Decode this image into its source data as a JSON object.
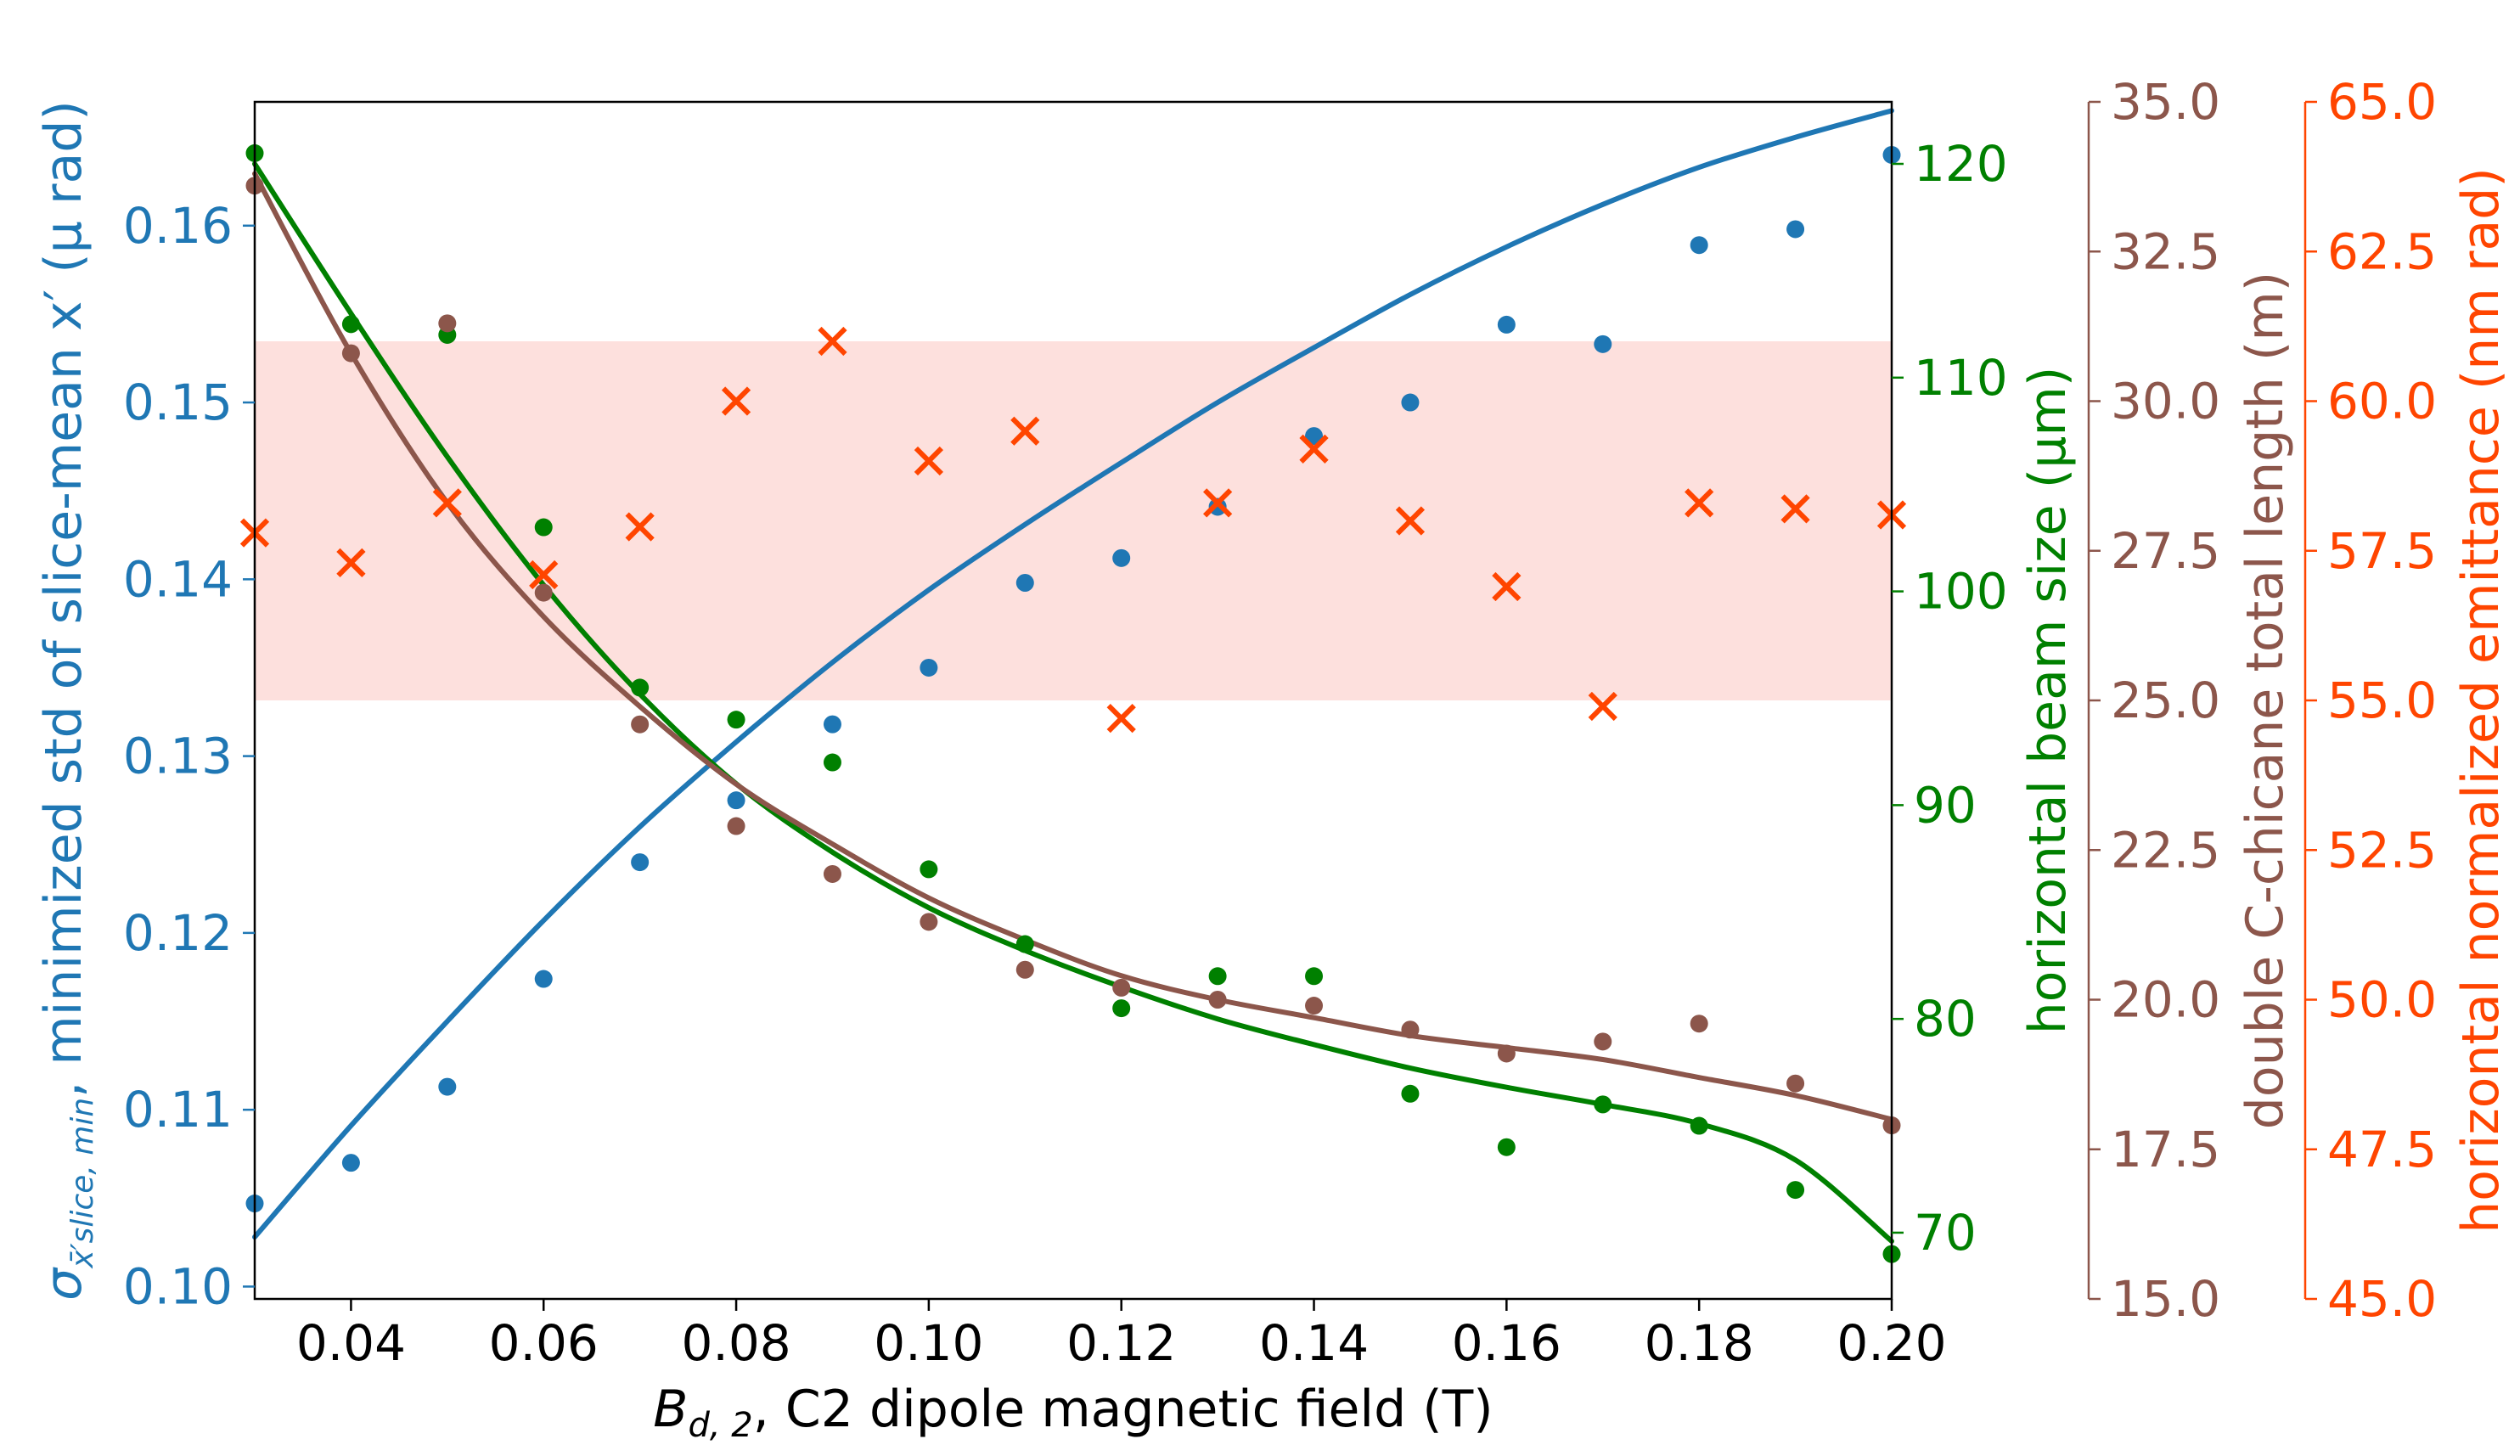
{
  "chart_data": {
    "type": "scatter",
    "x": [
      0.03,
      0.04,
      0.05,
      0.06,
      0.07,
      0.08,
      0.09,
      0.1,
      0.11,
      0.12,
      0.13,
      0.14,
      0.15,
      0.16,
      0.17,
      0.18,
      0.19,
      0.2
    ],
    "x_axis": {
      "label_symbol": "B",
      "label_subscript": "d, 2",
      "label_text": ", C2 dipole magnetic field (T)",
      "lim": [
        0.03,
        0.2
      ],
      "ticks": [
        "0.04",
        "0.06",
        "0.08",
        "0.10",
        "0.12",
        "0.14",
        "0.16",
        "0.18",
        "0.20"
      ]
    },
    "band": {
      "axis": "emittance",
      "range": [
        55.0,
        61.0
      ],
      "color": "#fde0dd"
    },
    "axes": [
      {
        "id": "slice",
        "color": "#1f77b4",
        "lim": [
          0.0993,
          0.167
        ],
        "ticks": [
          "0.10",
          "0.11",
          "0.12",
          "0.13",
          "0.14",
          "0.15",
          "0.16"
        ],
        "label_symbol": "σ",
        "label_subscript": "x̄′slice, min",
        "label_text": ", minimized std of slice-mean x′ (μ rad)"
      },
      {
        "id": "beam",
        "color": "#008000",
        "lim": [
          66.9,
          122.9
        ],
        "ticks": [
          "70",
          "80",
          "90",
          "100",
          "110",
          "120"
        ],
        "label_text": "horizontal beam size (μm)"
      },
      {
        "id": "length",
        "color": "#8c564b",
        "lim": [
          15.0,
          35.0
        ],
        "ticks": [
          "15.0",
          "17.5",
          "20.0",
          "22.5",
          "25.0",
          "27.5",
          "30.0",
          "32.5",
          "35.0"
        ],
        "label_text": "double C-chicane total length (m)"
      },
      {
        "id": "emittance",
        "color": "#ff4500",
        "lim": [
          45.0,
          65.0
        ],
        "ticks": [
          "45.0",
          "47.5",
          "50.0",
          "52.5",
          "55.0",
          "57.5",
          "60.0",
          "62.5",
          "65.0"
        ],
        "label_text": "horizontal normalized emittance (nm rad)"
      }
    ],
    "series": [
      {
        "name": "minimized std of slice-mean x′",
        "axis": "slice",
        "marker": "circle",
        "color": "#1f77b4",
        "values": [
          0.1047,
          0.107,
          0.1113,
          0.1174,
          0.124,
          0.1275,
          0.1318,
          0.135,
          0.1398,
          0.1412,
          0.1441,
          0.1481,
          0.15,
          0.1544,
          0.1533,
          0.1589,
          0.1598,
          0.164
        ],
        "fit": [
          0.1028,
          0.1091,
          0.115,
          0.1207,
          0.126,
          0.1308,
          0.1353,
          0.1394,
          0.1431,
          0.1466,
          0.15,
          0.1531,
          0.1561,
          0.1588,
          0.1612,
          0.1633,
          0.165,
          0.1665
        ]
      },
      {
        "name": "horizontal beam size",
        "axis": "beam",
        "marker": "circle",
        "color": "#008000",
        "values": [
          120.5,
          112.5,
          112.0,
          103.0,
          95.5,
          94.0,
          92.0,
          87.0,
          83.5,
          80.5,
          82.0,
          82.0,
          76.5,
          74.0,
          76.0,
          75.0,
          72.0,
          69.0
        ],
        "fit": [
          120.0,
          113.0,
          106.3,
          100.3,
          95.2,
          91.0,
          87.8,
          85.2,
          83.2,
          81.5,
          80.0,
          78.8,
          77.7,
          76.8,
          76.0,
          75.1,
          73.4,
          69.6
        ]
      },
      {
        "name": "double C-chicane total length",
        "axis": "length",
        "marker": "circle",
        "color": "#8c564b",
        "values": [
          33.6,
          30.8,
          31.3,
          26.8,
          24.6,
          22.9,
          22.1,
          21.3,
          20.5,
          20.2,
          20.0,
          19.9,
          19.5,
          19.1,
          19.3,
          19.6,
          18.6,
          17.9
        ],
        "fit": [
          33.8,
          30.8,
          28.3,
          26.4,
          24.9,
          23.6,
          22.6,
          21.7,
          21.0,
          20.4,
          20.0,
          19.7,
          19.4,
          19.2,
          19.0,
          18.7,
          18.4,
          18.0
        ]
      },
      {
        "name": "horizontal normalized emittance",
        "axis": "emittance",
        "marker": "x",
        "color": "#ff4500",
        "values": [
          57.8,
          57.3,
          58.3,
          57.1,
          57.9,
          60.0,
          61.0,
          59.0,
          59.5,
          54.7,
          58.3,
          59.2,
          58.0,
          56.9,
          54.9,
          58.3,
          58.2,
          58.1
        ]
      }
    ]
  }
}
